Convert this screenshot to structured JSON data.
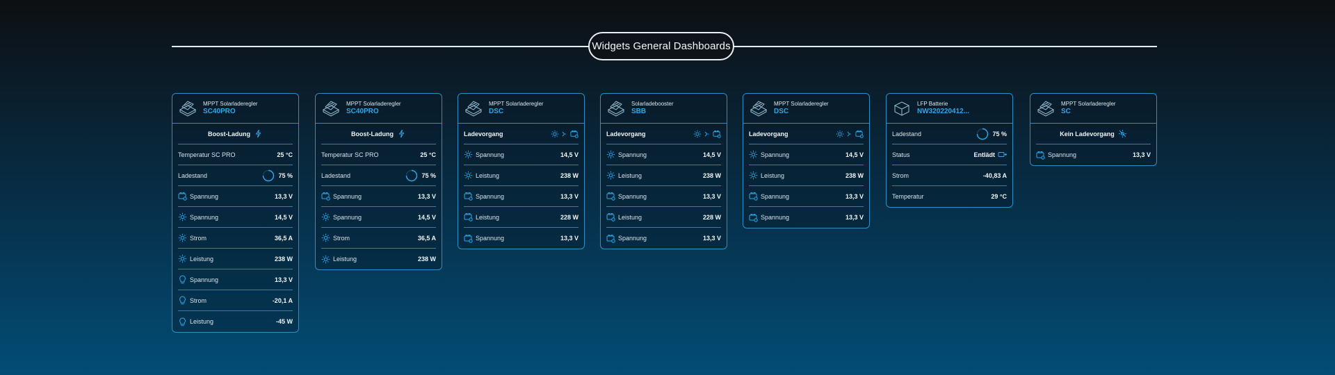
{
  "header": {
    "title": "Widgets General Dashboards"
  },
  "colors": {
    "accent": "#2ea7e8",
    "border": "#2d8fc4",
    "text": "#d8e3ea"
  },
  "cards": [
    {
      "type": "MPPT Solarladeregler",
      "name": "SC40PRO",
      "icon": "solar-controller-icon",
      "status": "Boost-Ladung",
      "rows": [
        {
          "icon": "thermometer-icon",
          "label": "Temperatur SC PRO",
          "value": "25 °C"
        },
        {
          "icon": "progress-ring-icon",
          "label": "Ladestand",
          "value": "75 %",
          "level": 0.75
        },
        {
          "icon": "battery-icon",
          "label": "Spannung",
          "value": "13,3 V"
        },
        {
          "icon": "sun-icon",
          "label": "Spannung",
          "value": "14,5 V"
        },
        {
          "icon": "sun-icon",
          "label": "Strom",
          "value": "36,5 A"
        },
        {
          "icon": "sun-icon",
          "label": "Leistung",
          "value": "238 W"
        },
        {
          "icon": "bulb-icon",
          "label": "Spannung",
          "value": "13,3 V"
        },
        {
          "icon": "bulb-icon",
          "label": "Strom",
          "value": "-20,1 A"
        },
        {
          "icon": "bulb-icon",
          "label": "Leistung",
          "value": "-45 W"
        }
      ]
    },
    {
      "type": "MPPT Solarladeregler",
      "name": "SC40PRO",
      "icon": "solar-controller-icon",
      "status": "Boost-Ladung",
      "rows": [
        {
          "icon": "thermometer-icon",
          "label": "Temperatur SC PRO",
          "value": "25 °C"
        },
        {
          "icon": "progress-ring-icon",
          "label": "Ladestand",
          "value": "75 %",
          "level": 0.75
        },
        {
          "icon": "battery-icon",
          "label": "Spannung",
          "value": "13,3 V"
        },
        {
          "icon": "sun-icon",
          "label": "Spannung",
          "value": "14,5 V"
        },
        {
          "icon": "sun-icon",
          "label": "Strom",
          "value": "36,5 A"
        },
        {
          "icon": "sun-icon",
          "label": "Leistung",
          "value": "238 W"
        }
      ]
    },
    {
      "type": "MPPT Solarladeregler",
      "name": "DSC",
      "icon": "solar-controller-icon",
      "status": "Ladevorgang",
      "rows": [
        {
          "icon": "sun-icon",
          "label": "Spannung",
          "value": "14,5 V"
        },
        {
          "icon": "sun-icon",
          "label": "Leistung",
          "value": "238 W"
        },
        {
          "icon": "battery-icon",
          "label": "Spannung",
          "value": "13,3 V"
        },
        {
          "icon": "battery-icon",
          "label": "Leistung",
          "value": "228 W"
        },
        {
          "icon": "battery-icon",
          "label": "Spannung",
          "value": "13,3 V"
        }
      ]
    },
    {
      "type": "Solarladebooster",
      "name": "SBB",
      "icon": "solar-controller-icon",
      "status": "Ladevorgang",
      "rows": [
        {
          "icon": "sun-icon",
          "label": "Spannung",
          "value": "14,5 V"
        },
        {
          "icon": "sun-icon",
          "label": "Leistung",
          "value": "238 W"
        },
        {
          "icon": "battery-icon",
          "label": "Spannung",
          "value": "13,3 V"
        },
        {
          "icon": "battery-icon",
          "label": "Leistung",
          "value": "228 W"
        },
        {
          "icon": "battery-icon",
          "label": "Spannung",
          "value": "13,3 V"
        }
      ]
    },
    {
      "type": "MPPT Solarladeregler",
      "name": "DSC",
      "icon": "solar-controller-icon",
      "status": "Ladevorgang",
      "rows": [
        {
          "icon": "sun-icon",
          "label": "Spannung",
          "value": "14,5 V"
        },
        {
          "icon": "sun-icon",
          "label": "Leistung",
          "value": "238 W"
        },
        {
          "icon": "battery-icon",
          "label": "Spannung",
          "value": "13,3 V"
        },
        {
          "icon": "battery-icon",
          "label": "Spannung",
          "value": "13,3 V"
        }
      ]
    },
    {
      "type": "LFP Batterie",
      "name": "NW32022041​2...",
      "icon": "battery-box-icon",
      "rows": [
        {
          "icon": "progress-ring-icon",
          "label": "Ladestand",
          "value": "75 %",
          "level": 0.75
        },
        {
          "icon": "discharge-icon",
          "label": "Status",
          "value": "Entlädt"
        },
        {
          "icon": "",
          "label": "Strom",
          "value": "-40,83 A"
        },
        {
          "icon": "",
          "label": "Temperatur",
          "value": "29 °C"
        }
      ]
    },
    {
      "type": "MPPT Solarladeregler",
      "name": "SC",
      "icon": "solar-controller-icon",
      "status": "Kein Ladevorgang",
      "rows": [
        {
          "icon": "battery-icon",
          "label": "Spannung",
          "value": "13,3 V"
        }
      ]
    }
  ]
}
